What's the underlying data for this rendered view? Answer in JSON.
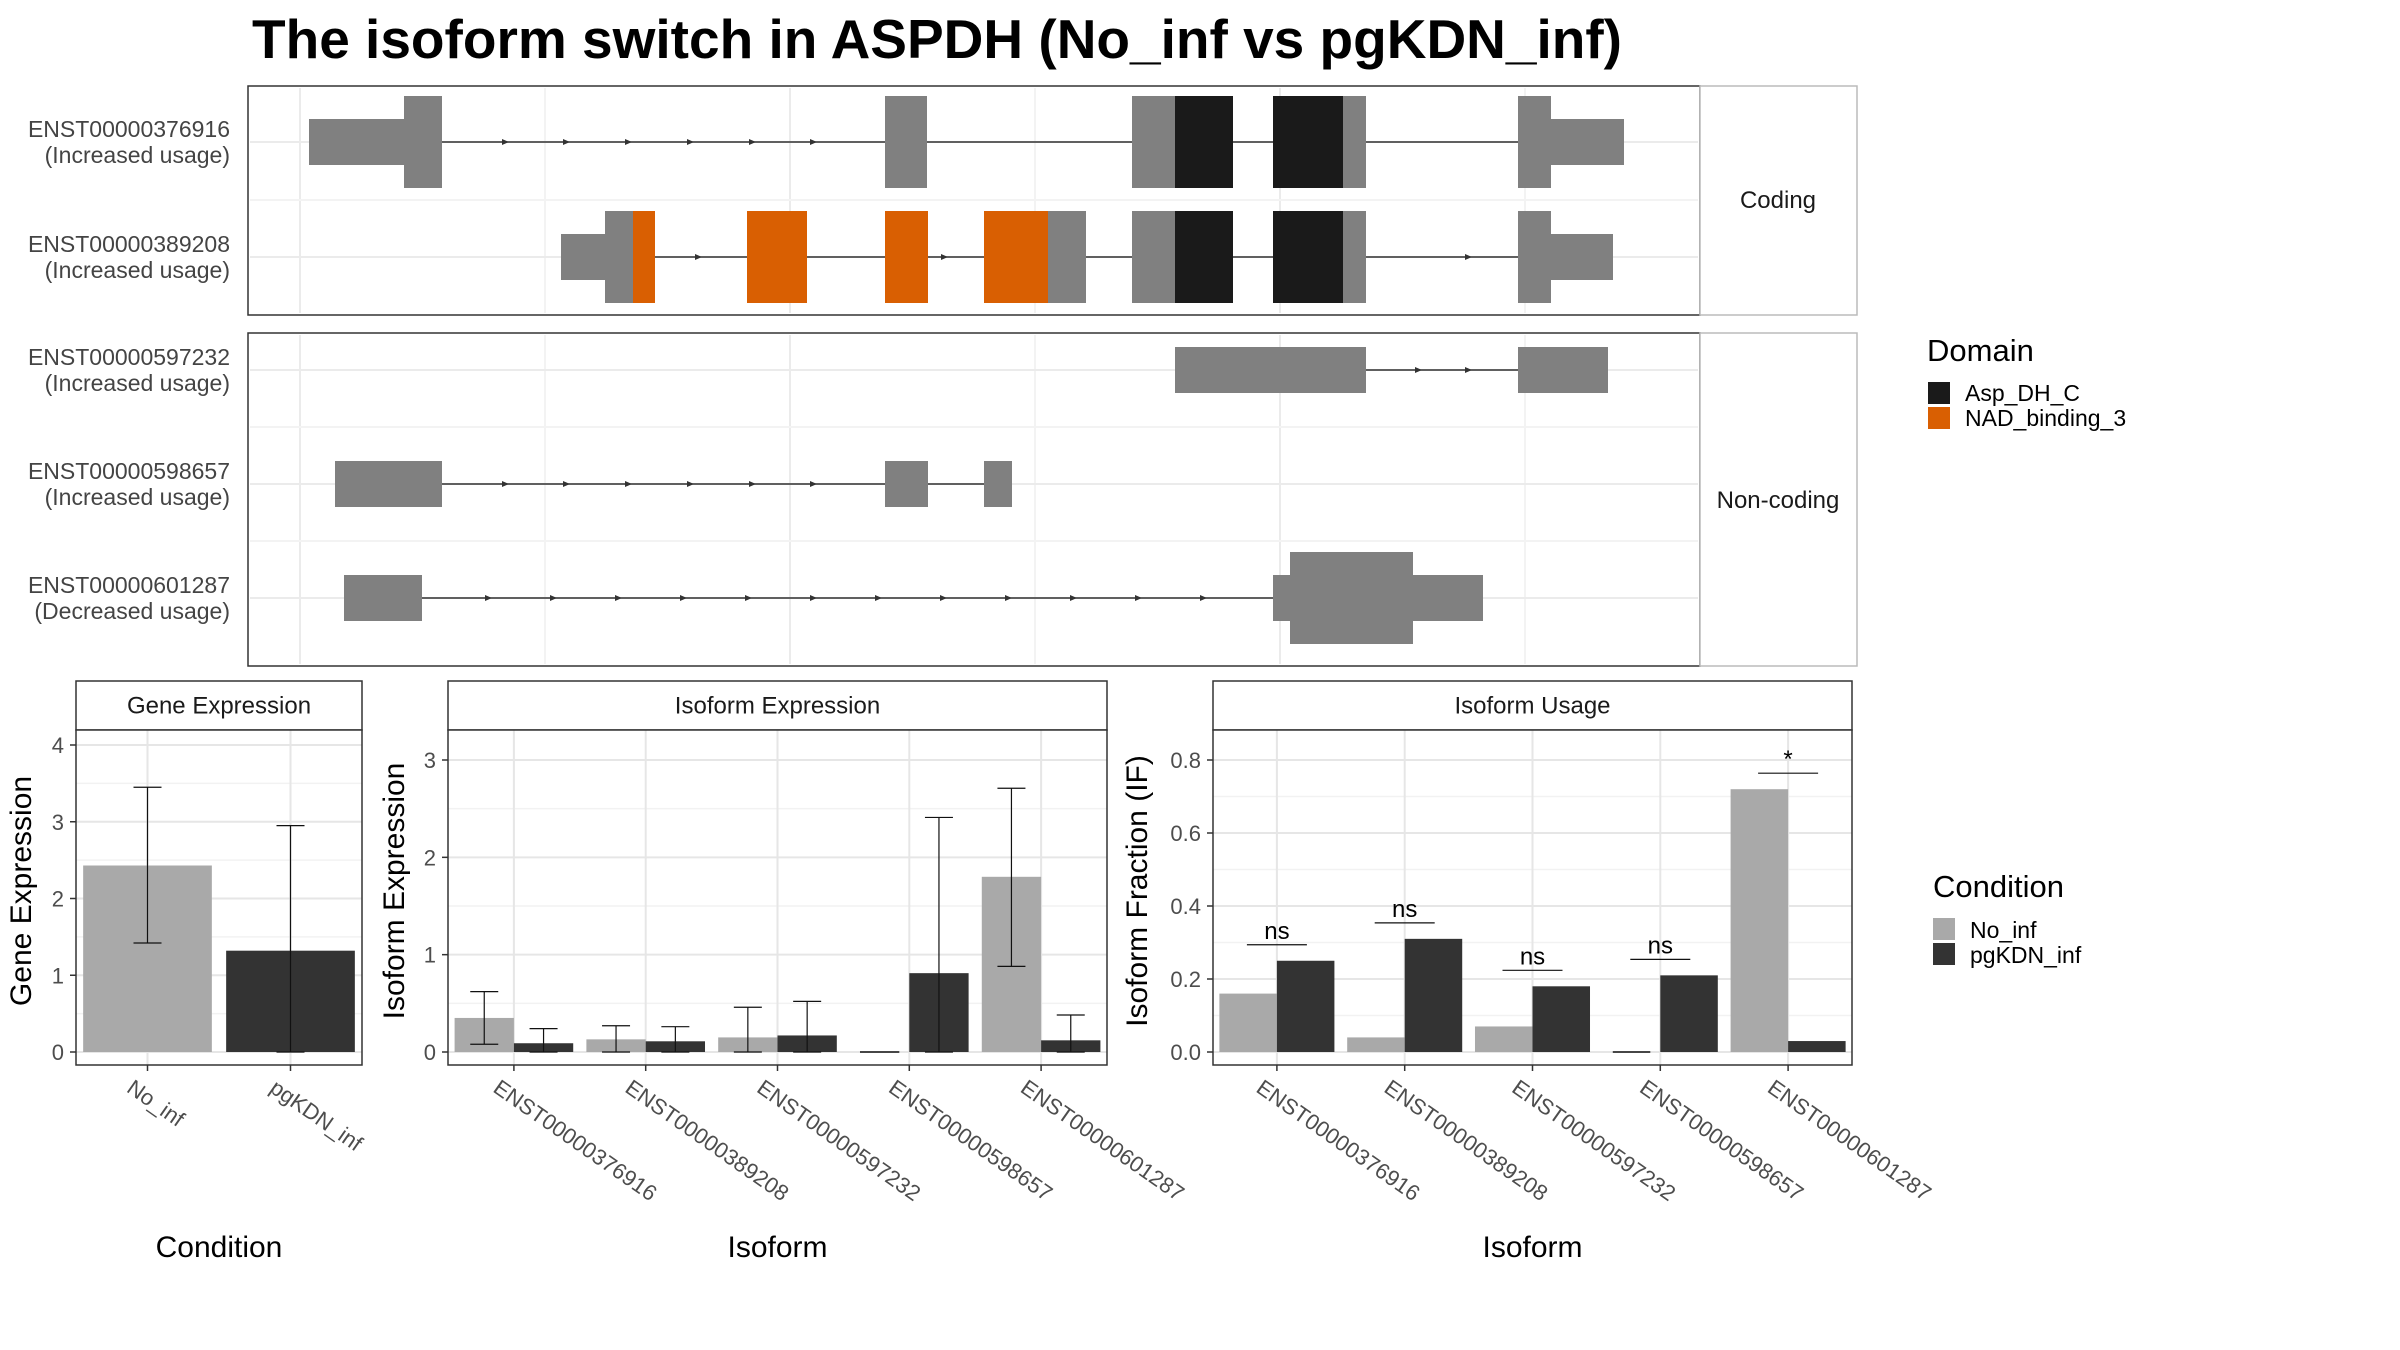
{
  "title": "The isoform switch in ASPDH (No_inf vs pgKDN_inf)",
  "colors": {
    "exon": "#808080",
    "Asp_DH_C": "#1a1a1a",
    "NAD_binding_3": "#d95f02",
    "No_inf": "#a9a9a9",
    "pgKDN_inf": "#333333"
  },
  "transcripts": {
    "coding_label": "Coding",
    "noncoding_label": "Non-coding",
    "items": [
      {
        "id": "ENST00000376916",
        "status": "(Increased usage)",
        "group": "coding"
      },
      {
        "id": "ENST00000389208",
        "status": "(Increased usage)",
        "group": "coding"
      },
      {
        "id": "ENST00000597232",
        "status": "(Increased usage)",
        "group": "noncoding"
      },
      {
        "id": "ENST00000598657",
        "status": "(Increased usage)",
        "group": "noncoding"
      },
      {
        "id": "ENST00000601287",
        "status": "(Decreased usage)",
        "group": "noncoding"
      }
    ]
  },
  "legend_domain": {
    "title": "Domain",
    "items": [
      {
        "label": "Asp_DH_C",
        "color": "#1a1a1a"
      },
      {
        "label": "NAD_binding_3",
        "color": "#d95f02"
      }
    ]
  },
  "legend_condition": {
    "title": "Condition",
    "items": [
      {
        "label": "No_inf",
        "color": "#a9a9a9"
      },
      {
        "label": "pgKDN_inf",
        "color": "#333333"
      }
    ]
  },
  "chart_data": [
    {
      "type": "bar",
      "title": "Gene Expression",
      "xlabel": "Condition",
      "ylabel": "Gene Expression",
      "categories": [
        "No_inf",
        "pgKDN_inf"
      ],
      "values": [
        2.43,
        1.32
      ],
      "err_low": [
        1.42,
        0.0
      ],
      "err_high": [
        3.45,
        2.95
      ],
      "ylim": [
        0,
        4
      ],
      "yticks": [
        "0",
        "1",
        "2",
        "3",
        "4"
      ]
    },
    {
      "type": "bar",
      "title": "Isoform Expression",
      "xlabel": "Isoform",
      "ylabel": "Isoform Expression",
      "categories": [
        "ENST00000376916",
        "ENST00000389208",
        "ENST00000597232",
        "ENST00000598657",
        "ENST00000601287"
      ],
      "series": [
        {
          "name": "No_inf",
          "values": [
            0.35,
            0.13,
            0.15,
            0.0,
            1.8
          ],
          "err_low": [
            0.08,
            0.0,
            0.0,
            0.0,
            0.88
          ],
          "err_high": [
            0.62,
            0.27,
            0.46,
            0.0,
            2.71
          ]
        },
        {
          "name": "pgKDN_inf",
          "values": [
            0.09,
            0.11,
            0.17,
            0.81,
            0.12
          ],
          "err_low": [
            0.0,
            0.0,
            0.0,
            0.0,
            0.0
          ],
          "err_high": [
            0.24,
            0.26,
            0.52,
            2.41,
            0.38
          ]
        }
      ],
      "ylim": [
        0,
        3
      ],
      "yticks": [
        "0",
        "1",
        "2",
        "3"
      ]
    },
    {
      "type": "bar",
      "title": "Isoform Usage",
      "xlabel": "Isoform",
      "ylabel": "Isoform Fraction (IF)",
      "categories": [
        "ENST00000376916",
        "ENST00000389208",
        "ENST00000597232",
        "ENST00000598657",
        "ENST00000601287"
      ],
      "series": [
        {
          "name": "No_inf",
          "values": [
            0.16,
            0.04,
            0.07,
            0.0,
            0.72
          ]
        },
        {
          "name": "pgKDN_inf",
          "values": [
            0.25,
            0.31,
            0.18,
            0.21,
            0.03
          ]
        }
      ],
      "significance": [
        "ns",
        "ns",
        "ns",
        "ns",
        "*"
      ],
      "ylim": [
        0,
        0.8
      ],
      "yticks": [
        "0.0",
        "0.2",
        "0.4",
        "0.6",
        "0.8"
      ]
    }
  ]
}
